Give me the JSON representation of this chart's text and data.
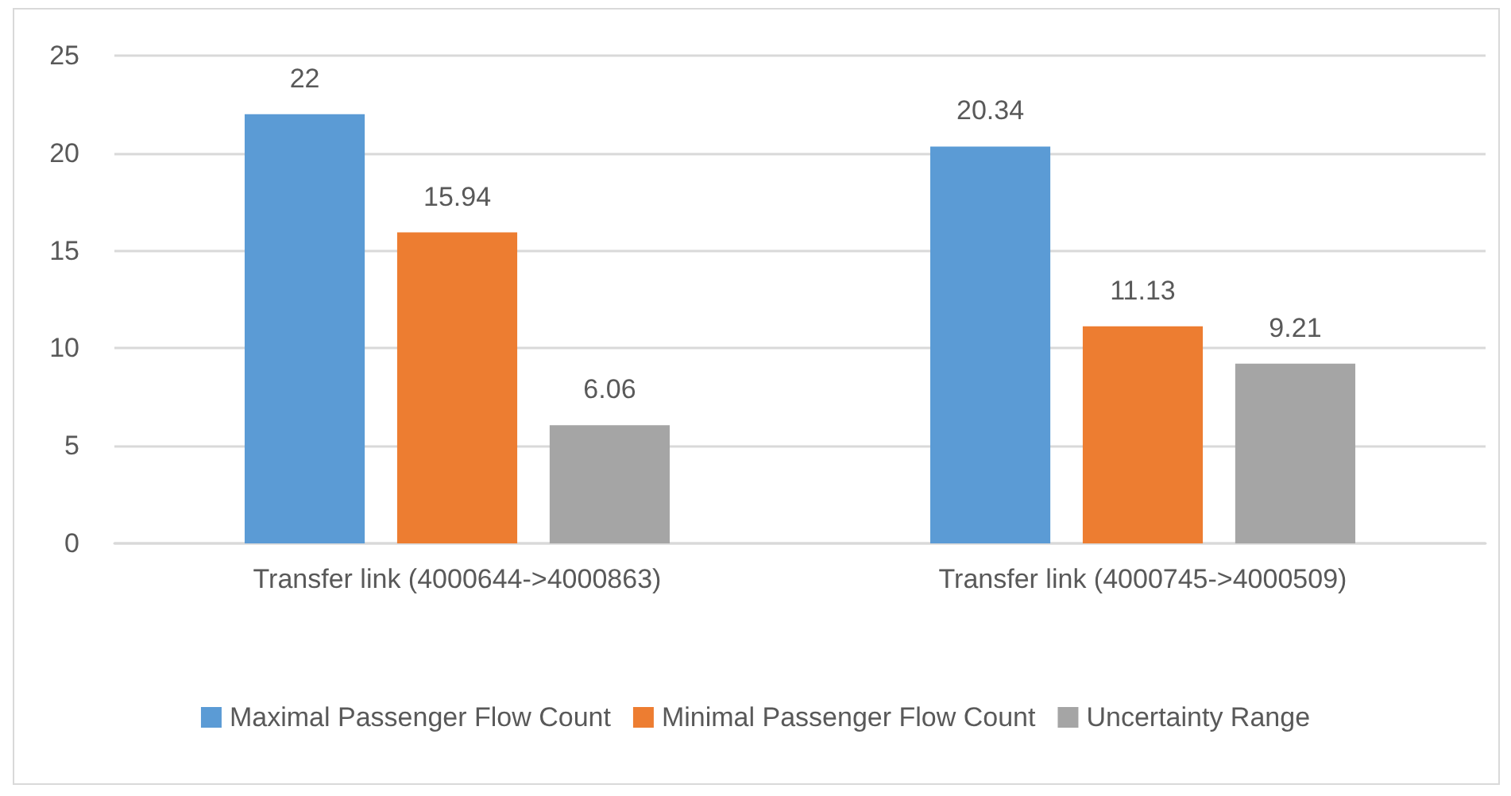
{
  "chart_data": {
    "type": "bar",
    "categories": [
      "Transfer link (4000644->4000863)",
      "Transfer link (4000745->4000509)"
    ],
    "series": [
      {
        "name": "Maximal Passenger Flow Count",
        "color": "#5b9bd5",
        "values": [
          22,
          20.34
        ]
      },
      {
        "name": "Minimal Passenger Flow Count",
        "color": "#ed7d31",
        "values": [
          15.94,
          11.13
        ]
      },
      {
        "name": "Uncertainty Range",
        "color": "#a5a5a5",
        "values": [
          6.06,
          9.21
        ]
      }
    ],
    "ylim": [
      0,
      25
    ],
    "yticks": [
      0,
      5,
      10,
      15,
      20,
      25
    ],
    "grid": "y",
    "legend": "bottom",
    "data_labels": true
  }
}
